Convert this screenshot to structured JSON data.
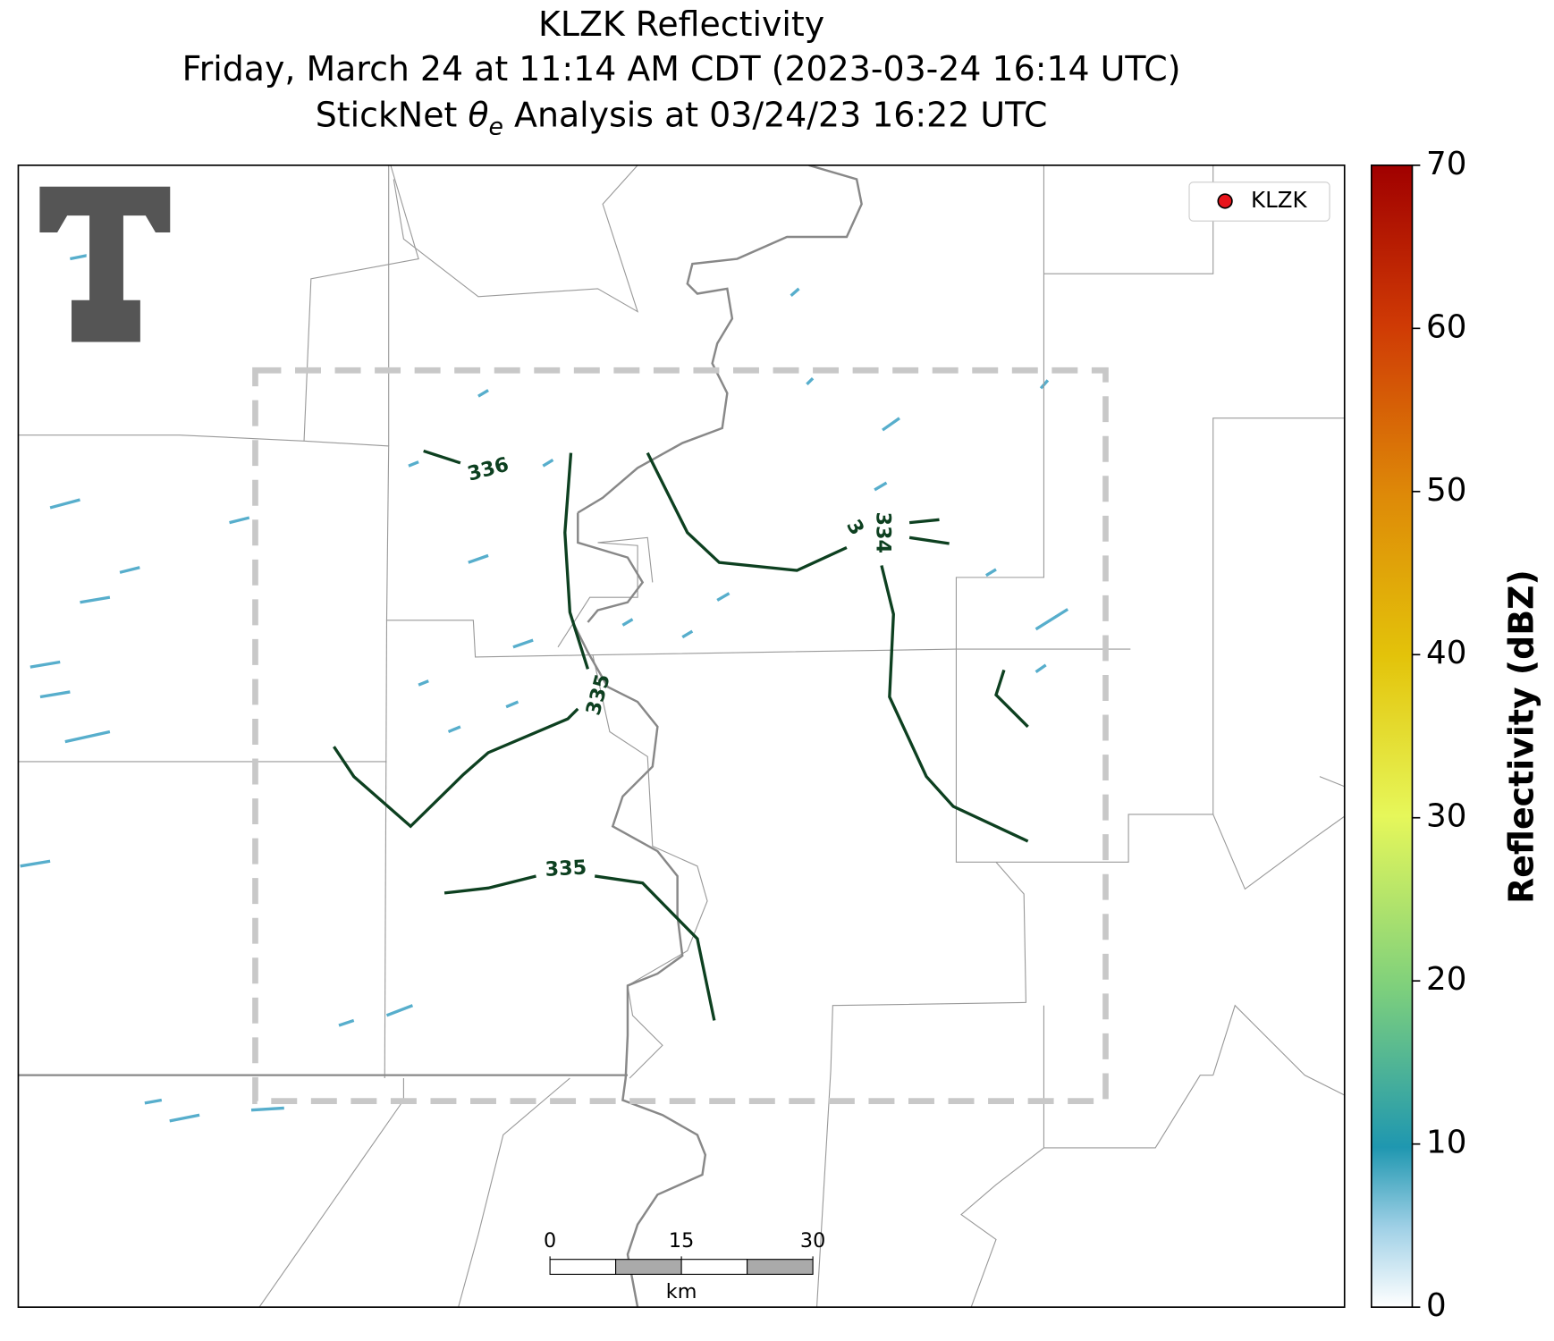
{
  "header": {
    "title_line1": "KLZK Reflectivity",
    "title_line2": "Friday, March 24 at 11:14 AM CDT (2023-03-24 16:14 UTC)",
    "title_line3": {
      "before": "StickNet ",
      "symbol": "θ",
      "subscript": "e",
      "after": " Analysis at 03/24/23 16:22 UTC"
    }
  },
  "legend": {
    "label": "KLZK",
    "color": "#e8141b"
  },
  "contours": [
    {
      "label": 336
    },
    {
      "label": 335
    },
    {
      "label": 335
    },
    {
      "label": 334
    }
  ],
  "partial_label": "3",
  "scale_bar": {
    "ticks": [
      0,
      15,
      30
    ],
    "lim": [
      0,
      30
    ],
    "unit": "km"
  },
  "colorbar": {
    "label": "Reflectivity (dBZ)",
    "lim": [
      0,
      70
    ],
    "ticks": [
      0,
      10,
      20,
      30,
      40,
      50,
      60,
      70
    ]
  }
}
